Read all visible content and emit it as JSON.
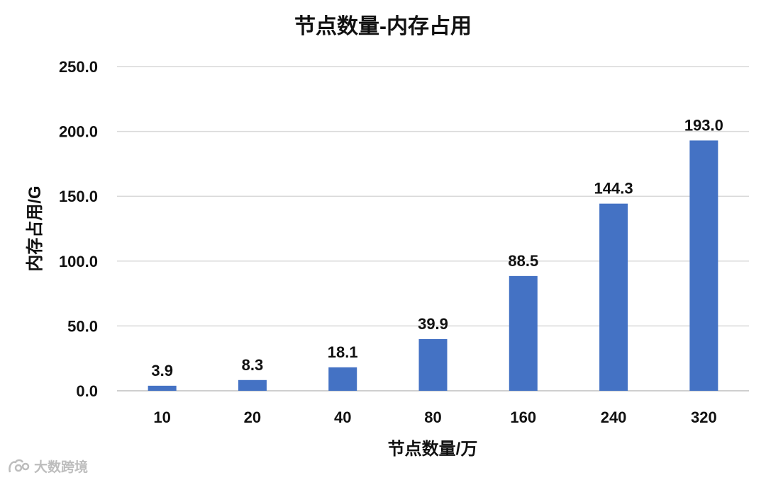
{
  "chart_data": {
    "type": "bar",
    "title": "节点数量-内存占用",
    "xlabel": "节点数量/万",
    "ylabel": "内存占用/G",
    "categories": [
      "10",
      "20",
      "40",
      "80",
      "160",
      "240",
      "320"
    ],
    "values": [
      3.9,
      8.3,
      18.1,
      39.9,
      88.5,
      144.3,
      193.0
    ],
    "data_labels": [
      "3.9",
      "8.3",
      "18.1",
      "39.9",
      "88.5",
      "144.3",
      "193.0"
    ],
    "ylim": [
      0,
      250
    ],
    "yticks": [
      "0.0",
      "50.0",
      "100.0",
      "150.0",
      "200.0",
      "250.0"
    ],
    "grid": true,
    "legend": "none",
    "bar_color": "#4472c4"
  },
  "watermark": {
    "text": "大数跨境",
    "icon": "brand-logo-icon"
  }
}
